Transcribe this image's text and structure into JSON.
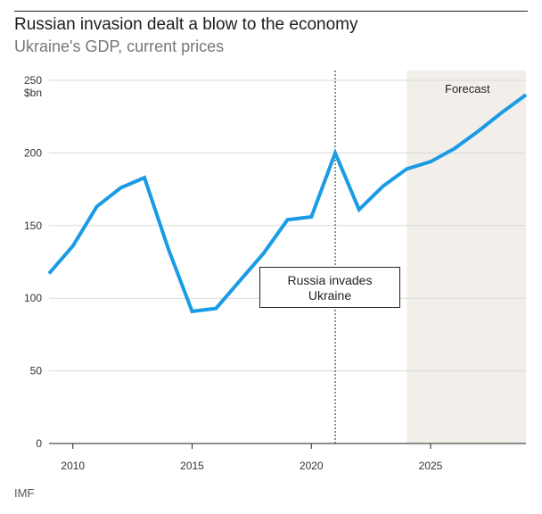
{
  "header": {
    "title": "Russian invasion dealt a blow to the economy",
    "subtitle": "Ukraine's GDP, current prices"
  },
  "footer": {
    "source": "IMF"
  },
  "colors": {
    "line": "#1a9be6",
    "forecast_band": "#f2efea",
    "grid": "#d9d9d9",
    "axis": "#222222"
  },
  "chart_data": {
    "type": "line",
    "title": "Russian invasion dealt a blow to the economy",
    "subtitle": "Ukraine's GDP, current prices",
    "ylabel": "$bn",
    "xlabel": "",
    "ylim": [
      0,
      250
    ],
    "xlim": [
      2009,
      2029
    ],
    "y_ticks": [
      0,
      50,
      100,
      150,
      200,
      250
    ],
    "x_ticks": [
      2010,
      2015,
      2020,
      2025
    ],
    "grid": true,
    "series": [
      {
        "name": "Ukraine GDP",
        "x": [
          2009,
          2010,
          2011,
          2012,
          2013,
          2014,
          2015,
          2016,
          2017,
          2018,
          2019,
          2020,
          2021,
          2022,
          2023,
          2024,
          2025,
          2026,
          2027,
          2028,
          2029
        ],
        "values": [
          117,
          136,
          163,
          176,
          183,
          134,
          91,
          93,
          112,
          131,
          154,
          156,
          200,
          161,
          177,
          189,
          194,
          203,
          215,
          228,
          240
        ]
      }
    ],
    "forecast_start": 2024,
    "forecast_label": "Forecast",
    "event": {
      "x": 2021,
      "label_line1": "Russia invades",
      "label_line2": "Ukraine"
    },
    "source": "IMF"
  }
}
